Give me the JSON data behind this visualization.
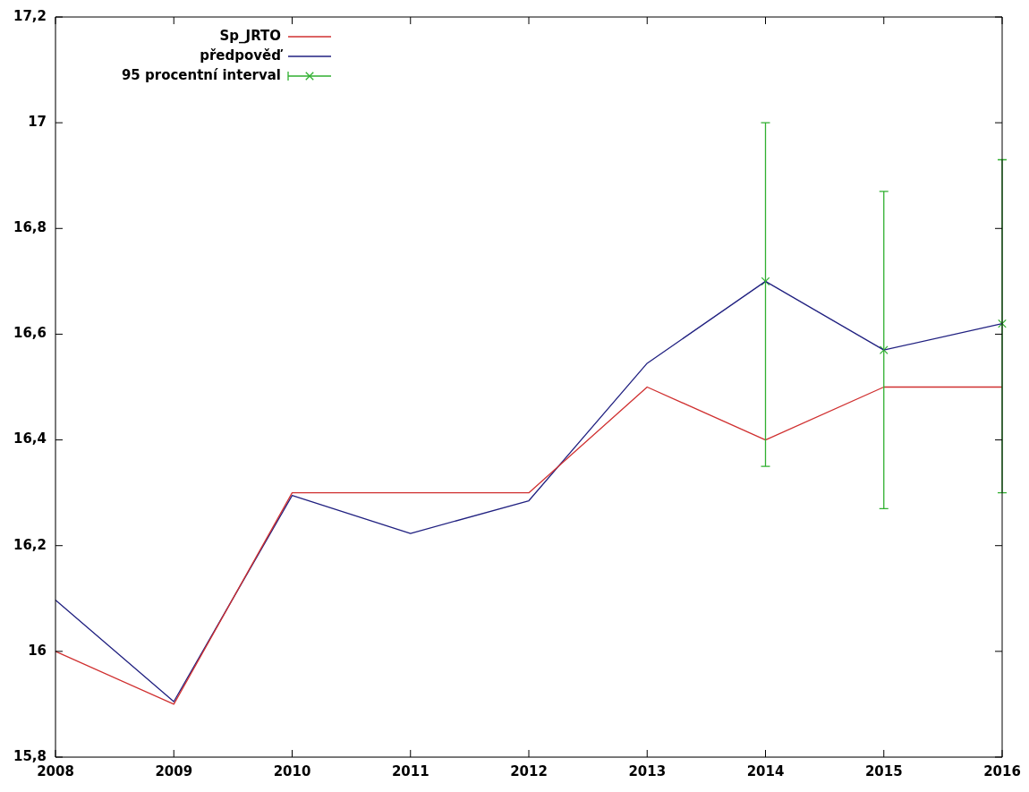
{
  "chart_data": {
    "type": "line",
    "categories": [
      "2008",
      "2009",
      "2010",
      "2011",
      "2012",
      "2013",
      "2014",
      "2015",
      "2016"
    ],
    "series": [
      {
        "name": "Sp_JRTO",
        "color": "#d03030",
        "values": [
          16.0,
          15.9,
          16.3,
          16.3,
          16.3,
          16.5,
          16.4,
          16.5,
          16.5
        ]
      },
      {
        "name": "předpověď",
        "color": "#202080",
        "values": [
          16.097,
          15.905,
          16.295,
          16.223,
          16.285,
          16.545,
          16.7,
          16.57,
          16.62
        ]
      },
      {
        "name": "95 procentní interval",
        "type": "scatter",
        "color": "#30b030",
        "marker": "cross",
        "values": [
          null,
          null,
          null,
          null,
          null,
          null,
          16.7,
          16.57,
          16.62
        ],
        "errors": [
          null,
          null,
          null,
          null,
          null,
          null,
          [
            16.35,
            17.0
          ],
          [
            16.27,
            16.87
          ],
          [
            16.3,
            16.93
          ]
        ]
      }
    ],
    "ylim": [
      15.8,
      17.2
    ],
    "yticks": [
      {
        "value": 15.8,
        "label": "15,8"
      },
      16,
      {
        "value": 16.2,
        "label": "16,2"
      },
      {
        "value": 16.4,
        "label": "16,4"
      },
      {
        "value": 16.6,
        "label": "16,6"
      },
      {
        "value": 16.8,
        "label": "16,8"
      },
      17,
      {
        "value": 17.2,
        "label": "17,2"
      }
    ],
    "grid": false,
    "legend": "top left",
    "marker": "none",
    "line_style": "solid"
  }
}
